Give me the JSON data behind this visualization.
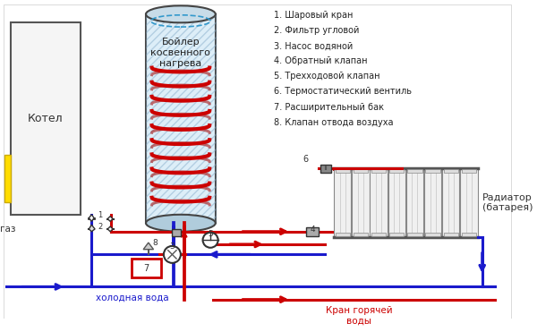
{
  "bg_color": "#ffffff",
  "boiler_label": "Бойлер\nкосвенного\nнагрева",
  "kotel_label": "Котел",
  "gaz_label": "газ",
  "cold_water_label": "холодная вода",
  "hot_water_label": "Кран горячей\nводы",
  "radiator_label": "Радиатор\n(батарея)",
  "legend_items": [
    "1. Шаровый кран",
    "2. Фильтр угловой",
    "3. Насос водяной",
    "4. Обратный клапан",
    "5. Трехходовой клапан",
    "6. Термостатический вентиль",
    "7. Расширительный бак",
    "8. Клапан отвода воздуха"
  ],
  "red": "#cc0000",
  "dblue": "#1a1acc",
  "gray": "#888888",
  "yellow": "#ffdd00",
  "boiler_body": "#ddeef8",
  "boiler_hatch": "#8ab0cc",
  "kotel_fill": "#f5f5f5",
  "kotel_edge": "#555555"
}
